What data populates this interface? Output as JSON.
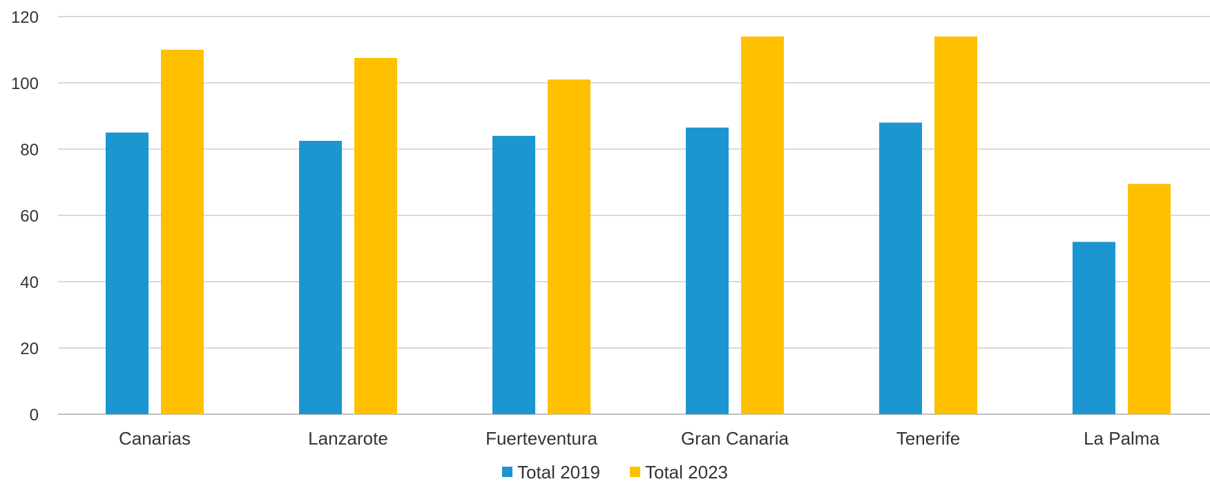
{
  "chart_data": {
    "type": "bar",
    "categories": [
      "Canarias",
      "Lanzarote",
      "Fuerteventura",
      "Gran Canaria",
      "Tenerife",
      "La Palma"
    ],
    "series": [
      {
        "name": "Total 2019",
        "color": "#1B96D1",
        "values": [
          85,
          82.5,
          84,
          86.5,
          88,
          52
        ]
      },
      {
        "name": "Total 2023",
        "color": "#FFC000",
        "values": [
          110,
          107.5,
          101,
          114,
          114,
          69.5
        ]
      }
    ],
    "ylim": [
      0,
      120
    ],
    "yticks": [
      0,
      20,
      40,
      60,
      80,
      100,
      120
    ],
    "grid": true,
    "legend_position": "bottom",
    "title": "",
    "xlabel": "",
    "ylabel": ""
  }
}
